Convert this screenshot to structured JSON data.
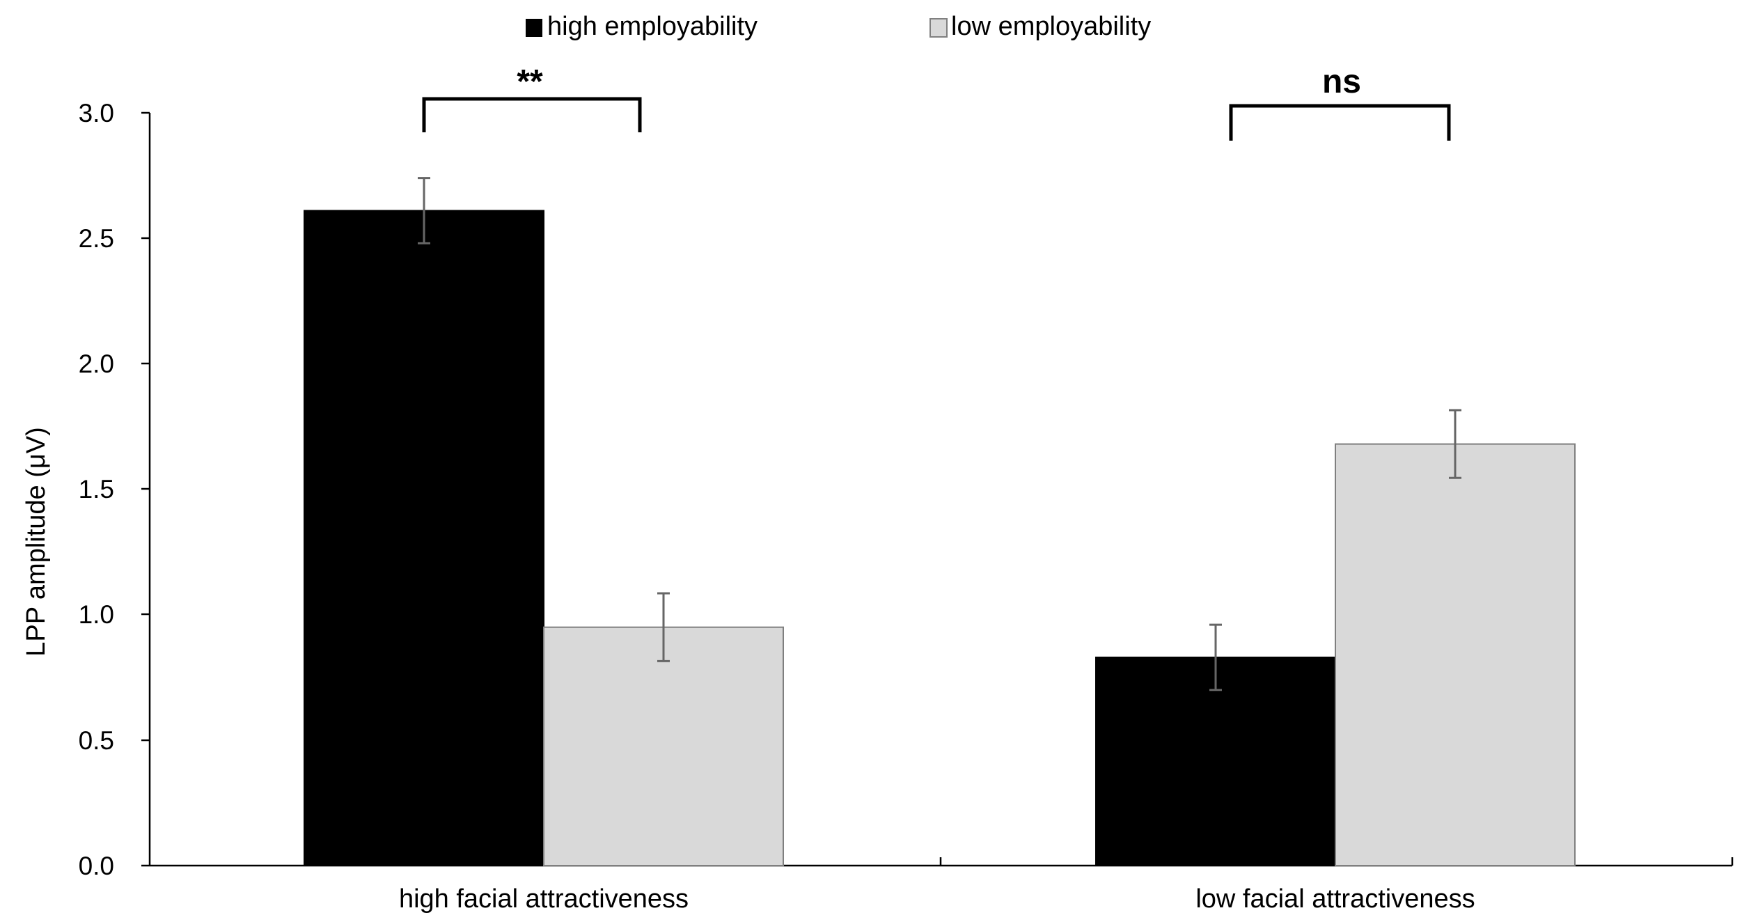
{
  "chart_data": {
    "type": "bar",
    "title": "",
    "xlabel": "",
    "ylabel": "LPP amplitude  (μV)",
    "ylim": [
      0,
      3
    ],
    "yticks": [
      "0.0",
      "0.5",
      "1.0",
      "1.5",
      "2.0",
      "2.5",
      "3.0"
    ],
    "categories": [
      "high facial attractiveness",
      "low facial attractiveness"
    ],
    "series": [
      {
        "name": "high employability",
        "color": "#000000",
        "values": [
          2.61,
          0.83
        ],
        "errors": [
          0.13,
          0.13
        ]
      },
      {
        "name": "low employability",
        "color": "#d9d9d9",
        "values": [
          0.95,
          1.68
        ],
        "errors": [
          0.135,
          0.135
        ]
      }
    ],
    "significance": [
      "**",
      "ns"
    ],
    "legend_position": "top-center"
  }
}
